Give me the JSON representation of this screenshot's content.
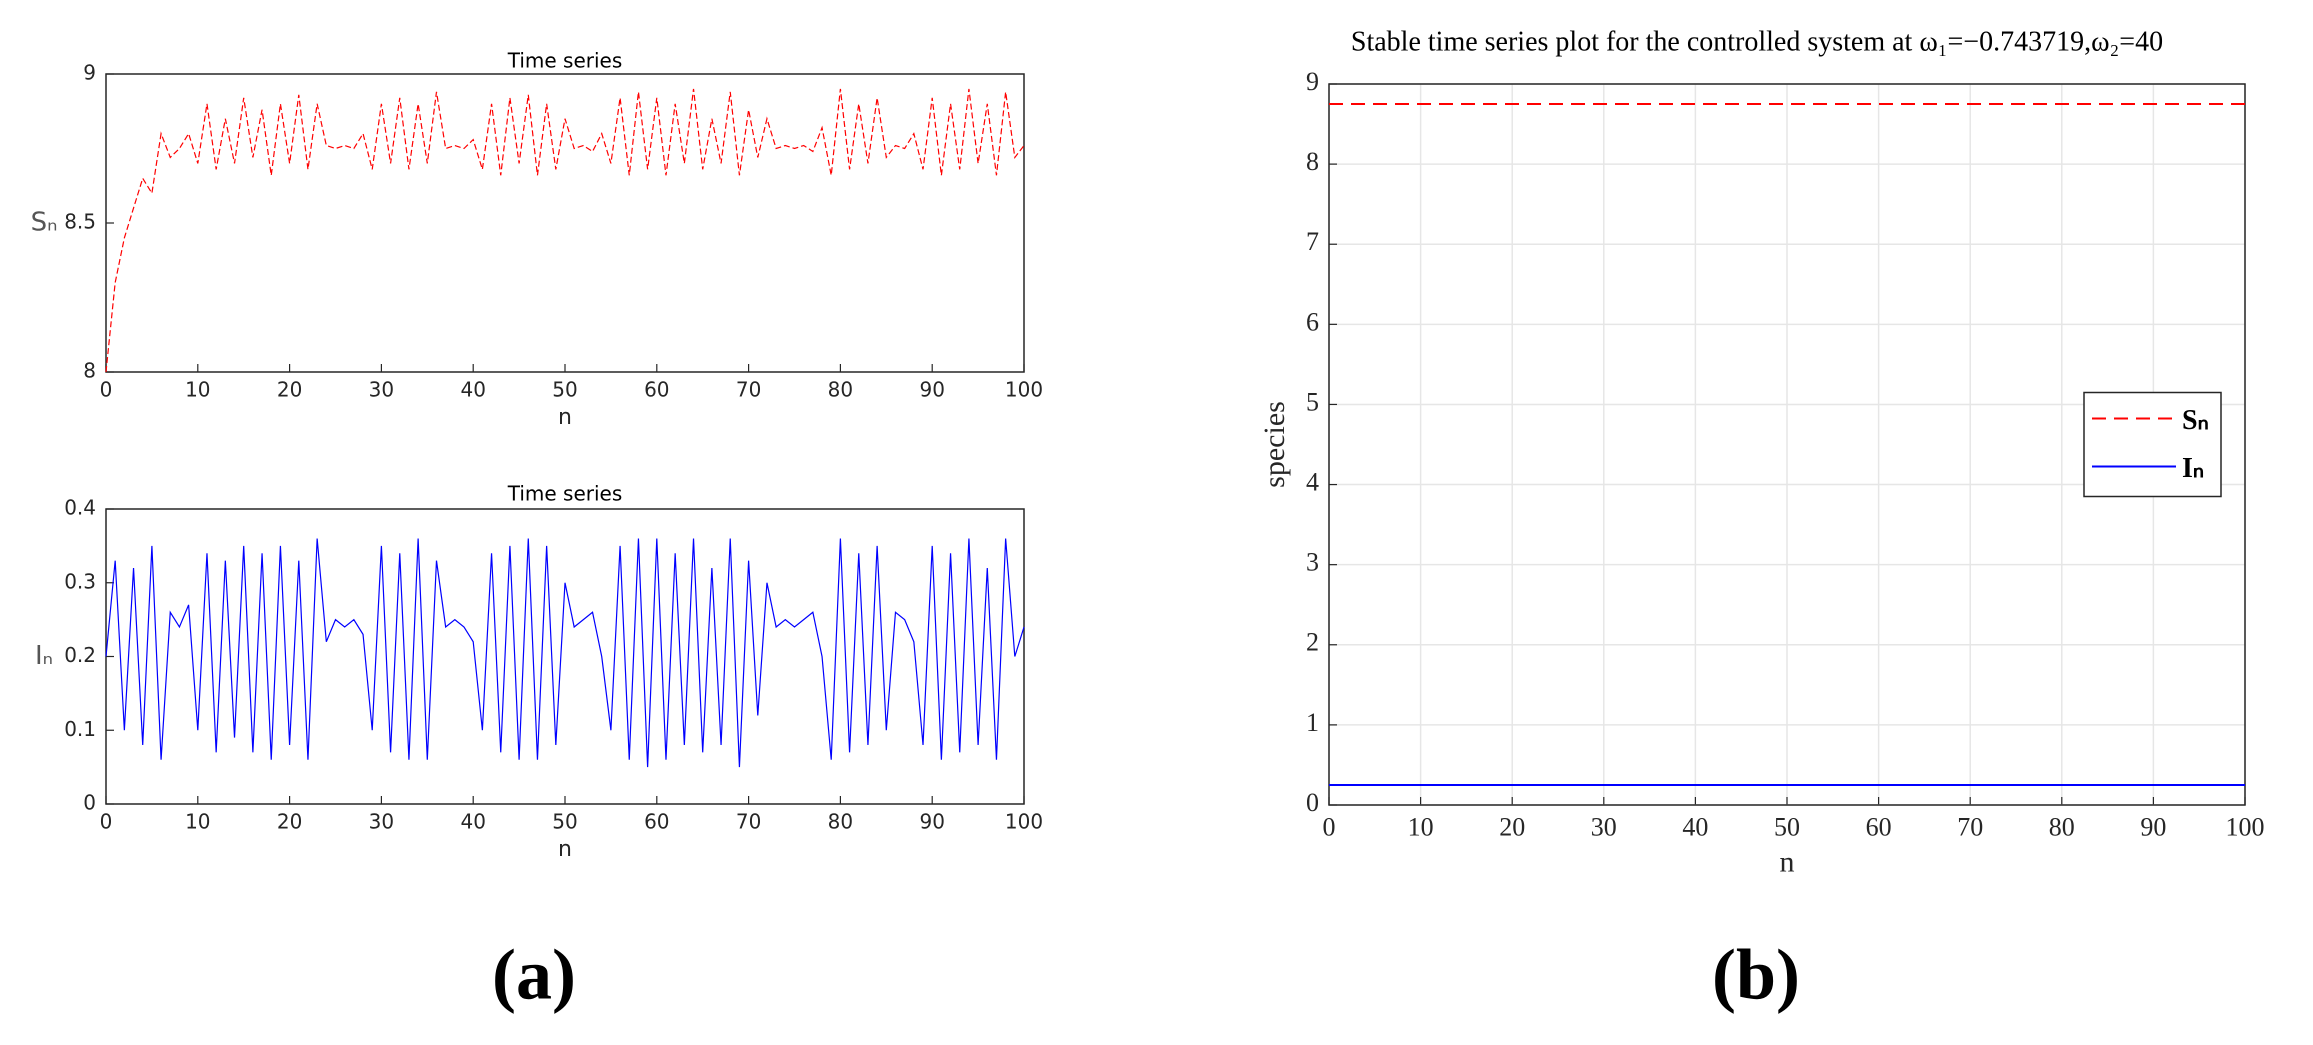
{
  "chart_data": [
    {
      "type": "line",
      "title": "Time series",
      "xlabel": "n",
      "ylabel": "Sₙ",
      "x": [
        0,
        1,
        2,
        3,
        4,
        5,
        6,
        7,
        8,
        9,
        10,
        11,
        12,
        13,
        14,
        15,
        16,
        17,
        18,
        19,
        20,
        21,
        22,
        23,
        24,
        25,
        26,
        27,
        28,
        29,
        30,
        31,
        32,
        33,
        34,
        35,
        36,
        37,
        38,
        39,
        40,
        41,
        42,
        43,
        44,
        45,
        46,
        47,
        48,
        49,
        50,
        51,
        52,
        53,
        54,
        55,
        56,
        57,
        58,
        59,
        60,
        61,
        62,
        63,
        64,
        65,
        66,
        67,
        68,
        69,
        70,
        71,
        72,
        73,
        74,
        75,
        76,
        77,
        78,
        79,
        80,
        81,
        82,
        83,
        84,
        85,
        86,
        87,
        88,
        89,
        90,
        91,
        92,
        93,
        94,
        95,
        96,
        97,
        98,
        99,
        100
      ],
      "series": [
        {
          "color": "#ff0000",
          "line_style": "dashed",
          "values": [
            8.0,
            8.3,
            8.45,
            8.55,
            8.65,
            8.6,
            8.8,
            8.72,
            8.75,
            8.8,
            8.7,
            8.9,
            8.68,
            8.85,
            8.7,
            8.92,
            8.72,
            8.88,
            8.66,
            8.9,
            8.7,
            8.93,
            8.68,
            8.9,
            8.76,
            8.75,
            8.76,
            8.75,
            8.8,
            8.68,
            8.9,
            8.7,
            8.92,
            8.68,
            8.9,
            8.7,
            8.94,
            8.75,
            8.76,
            8.75,
            8.78,
            8.68,
            8.9,
            8.66,
            8.92,
            8.7,
            8.93,
            8.66,
            8.9,
            8.68,
            8.85,
            8.75,
            8.76,
            8.74,
            8.8,
            8.7,
            8.92,
            8.66,
            8.94,
            8.68,
            8.92,
            8.66,
            8.9,
            8.7,
            8.95,
            8.68,
            8.85,
            8.7,
            8.94,
            8.66,
            8.88,
            8.72,
            8.85,
            8.75,
            8.76,
            8.75,
            8.76,
            8.74,
            8.82,
            8.66,
            8.95,
            8.68,
            8.9,
            8.7,
            8.92,
            8.72,
            8.76,
            8.75,
            8.8,
            8.68,
            8.92,
            8.66,
            8.9,
            8.68,
            8.95,
            8.7,
            8.9,
            8.66,
            8.94,
            8.72,
            8.76
          ]
        }
      ],
      "xlim": [
        0,
        100
      ],
      "xticks": [
        0,
        10,
        20,
        30,
        40,
        50,
        60,
        70,
        80,
        90,
        100
      ],
      "ylim": [
        8,
        9
      ],
      "yticks": [
        8,
        8.5,
        9
      ],
      "grid": false
    },
    {
      "type": "line",
      "title": "Time series",
      "xlabel": "n",
      "ylabel": "Iₙ",
      "x": [
        0,
        1,
        2,
        3,
        4,
        5,
        6,
        7,
        8,
        9,
        10,
        11,
        12,
        13,
        14,
        15,
        16,
        17,
        18,
        19,
        20,
        21,
        22,
        23,
        24,
        25,
        26,
        27,
        28,
        29,
        30,
        31,
        32,
        33,
        34,
        35,
        36,
        37,
        38,
        39,
        40,
        41,
        42,
        43,
        44,
        45,
        46,
        47,
        48,
        49,
        50,
        51,
        52,
        53,
        54,
        55,
        56,
        57,
        58,
        59,
        60,
        61,
        62,
        63,
        64,
        65,
        66,
        67,
        68,
        69,
        70,
        71,
        72,
        73,
        74,
        75,
        76,
        77,
        78,
        79,
        80,
        81,
        82,
        83,
        84,
        85,
        86,
        87,
        88,
        89,
        90,
        91,
        92,
        93,
        94,
        95,
        96,
        97,
        98,
        99,
        100
      ],
      "series": [
        {
          "color": "#0000ff",
          "line_style": "solid",
          "values": [
            0.2,
            0.33,
            0.1,
            0.32,
            0.08,
            0.35,
            0.06,
            0.26,
            0.24,
            0.27,
            0.1,
            0.34,
            0.07,
            0.33,
            0.09,
            0.35,
            0.07,
            0.34,
            0.06,
            0.35,
            0.08,
            0.33,
            0.06,
            0.36,
            0.22,
            0.25,
            0.24,
            0.25,
            0.23,
            0.1,
            0.35,
            0.07,
            0.34,
            0.06,
            0.36,
            0.06,
            0.33,
            0.24,
            0.25,
            0.24,
            0.22,
            0.1,
            0.34,
            0.07,
            0.35,
            0.06,
            0.36,
            0.06,
            0.35,
            0.08,
            0.3,
            0.24,
            0.25,
            0.26,
            0.2,
            0.1,
            0.35,
            0.06,
            0.36,
            0.05,
            0.36,
            0.06,
            0.34,
            0.08,
            0.36,
            0.07,
            0.32,
            0.08,
            0.36,
            0.05,
            0.33,
            0.12,
            0.3,
            0.24,
            0.25,
            0.24,
            0.25,
            0.26,
            0.2,
            0.06,
            0.36,
            0.07,
            0.34,
            0.08,
            0.35,
            0.1,
            0.26,
            0.25,
            0.22,
            0.08,
            0.35,
            0.06,
            0.34,
            0.07,
            0.36,
            0.08,
            0.32,
            0.06,
            0.36,
            0.2,
            0.24
          ]
        }
      ],
      "xlim": [
        0,
        100
      ],
      "xticks": [
        0,
        10,
        20,
        30,
        40,
        50,
        60,
        70,
        80,
        90,
        100
      ],
      "ylim": [
        0,
        0.4
      ],
      "yticks": [
        0,
        0.1,
        0.2,
        0.3,
        0.4
      ],
      "grid": false
    },
    {
      "type": "line",
      "title": "Stable time series plot for the controlled system at ω₁=−0.743719,ω₂=40",
      "xlabel": "n",
      "ylabel": "species",
      "x": [
        0,
        100
      ],
      "series": [
        {
          "name": "Sₙ",
          "color": "#ff0000",
          "line_style": "dashed",
          "values": [
            8.75,
            8.75
          ]
        },
        {
          "name": "Iₙ",
          "color": "#0000ff",
          "line_style": "solid",
          "values": [
            0.25,
            0.25
          ]
        }
      ],
      "xlim": [
        0,
        100
      ],
      "xticks": [
        0,
        10,
        20,
        30,
        40,
        50,
        60,
        70,
        80,
        90,
        100
      ],
      "ylim": [
        0,
        9
      ],
      "yticks": [
        0,
        1,
        2,
        3,
        4,
        5,
        6,
        7,
        8,
        9
      ],
      "grid": true,
      "legend": "right"
    }
  ],
  "captions": [
    "(a)",
    "(b)"
  ]
}
